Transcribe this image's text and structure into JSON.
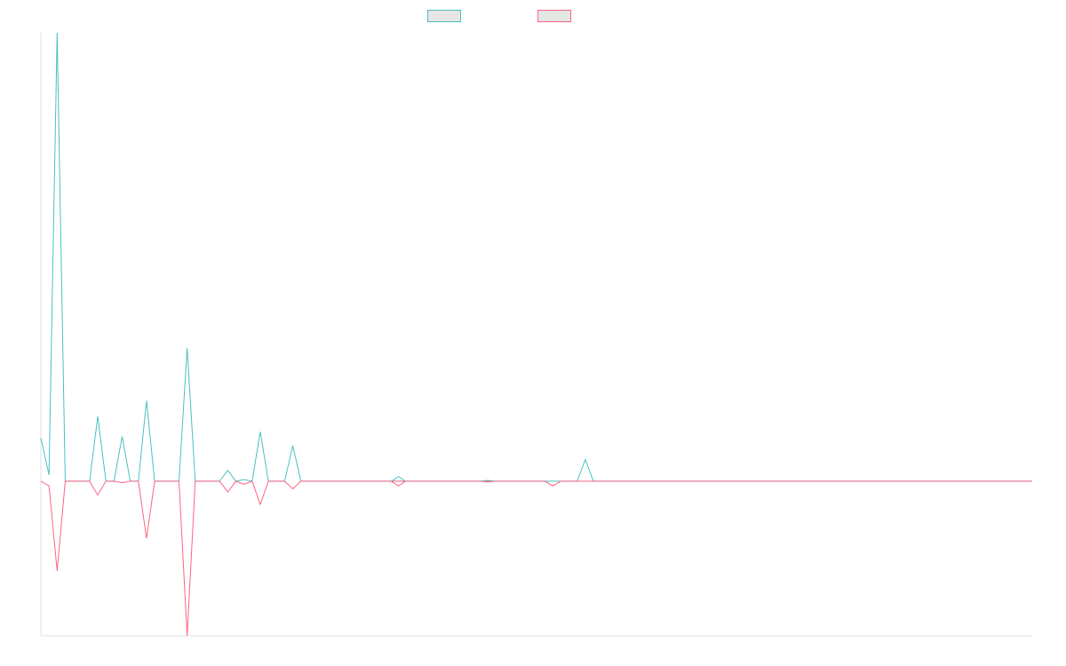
{
  "chart_data": {
    "type": "line",
    "title": "",
    "xlabel": "",
    "ylabel": "",
    "ylim": [
      -100,
      290
    ],
    "grid": false,
    "legend_position": "top-center",
    "x": [
      0,
      1,
      2,
      3,
      4,
      5,
      6,
      7,
      8,
      9,
      10,
      11,
      12,
      13,
      14,
      15,
      16,
      17,
      18,
      19,
      20,
      21,
      22,
      23,
      24,
      25,
      26,
      27,
      28,
      29,
      30,
      31,
      32,
      33,
      34,
      35,
      36,
      37,
      38,
      39,
      40,
      41,
      42,
      43,
      44,
      45,
      46,
      47,
      48,
      49,
      50,
      51,
      52,
      53,
      54,
      55,
      56,
      57,
      58,
      59,
      60,
      61,
      62,
      63,
      64,
      65,
      66,
      67,
      68,
      69,
      70,
      71,
      72,
      73,
      74,
      75,
      76,
      77,
      78,
      79,
      80,
      81,
      82,
      83,
      84,
      85,
      86,
      87,
      88,
      89,
      90,
      91,
      92,
      93,
      94,
      95,
      96,
      97,
      98,
      99,
      100,
      101,
      102,
      103,
      104,
      105,
      106,
      107,
      108,
      109,
      110,
      111,
      112,
      113,
      114,
      115,
      116,
      117,
      118,
      119,
      120,
      121,
      122
    ],
    "series": [
      {
        "name": "",
        "color": "#4bc0c0",
        "values": [
          28,
          4,
          290,
          0,
          0,
          0,
          0,
          42,
          0,
          0,
          29,
          0,
          0,
          52,
          0,
          0,
          0,
          0,
          86,
          0,
          0,
          0,
          0,
          7,
          0,
          1,
          0,
          32,
          0,
          0,
          0,
          23,
          0,
          0,
          0,
          0,
          0,
          0,
          0,
          0,
          0,
          0,
          0,
          0,
          0,
          0,
          0,
          0,
          0,
          0,
          0,
          0,
          0,
          0,
          0,
          0,
          0,
          0,
          0,
          0,
          0,
          0,
          0,
          0,
          0,
          0,
          0,
          14,
          0,
          0,
          0,
          0,
          0,
          0,
          0,
          0,
          0,
          0,
          0,
          0,
          0,
          0,
          0,
          0,
          0,
          0,
          0,
          0,
          0,
          0,
          0,
          0,
          0,
          0,
          0,
          0,
          0,
          0,
          0,
          0,
          0,
          0,
          0,
          0,
          0,
          0,
          0,
          0,
          0,
          0,
          0,
          0,
          0,
          0,
          0,
          0,
          0,
          0,
          0,
          0,
          0,
          0,
          0
        ]
      },
      {
        "name": "",
        "color": "#ff6384",
        "values": [
          0,
          -3,
          -58,
          0,
          0,
          0,
          0,
          -9,
          0,
          0,
          -1,
          0,
          0,
          -37,
          0,
          0,
          0,
          0,
          -100,
          0,
          0,
          0,
          0,
          -7,
          0,
          -2,
          0,
          -15,
          0,
          0,
          0,
          -5,
          0,
          0,
          0,
          0,
          0,
          0,
          0,
          0,
          0,
          0,
          0,
          0,
          0,
          0,
          0,
          0,
          0,
          0,
          0,
          0,
          0,
          0,
          0,
          0,
          0,
          0,
          0,
          0,
          0,
          0,
          0,
          -3,
          0,
          0,
          0,
          0,
          0,
          0,
          0,
          0,
          0,
          0,
          0,
          0,
          0,
          0,
          0,
          0,
          0,
          0,
          0,
          0,
          0,
          0,
          0,
          0,
          0,
          0,
          0,
          0,
          0,
          0,
          0,
          0,
          0,
          0,
          0,
          0,
          0,
          0,
          0,
          0,
          0,
          0,
          0,
          0,
          0,
          0,
          0,
          0,
          0,
          0,
          0,
          0,
          0,
          0,
          0,
          0,
          0,
          0,
          0
        ]
      }
    ],
    "annotations": [
      {
        "series": 0,
        "x": 44,
        "value": 3
      },
      {
        "series": 1,
        "x": 44,
        "value": -3
      },
      {
        "series": 0,
        "x": 55,
        "value": 0.5
      },
      {
        "series": 1,
        "x": 55,
        "value": -0.5
      }
    ]
  }
}
